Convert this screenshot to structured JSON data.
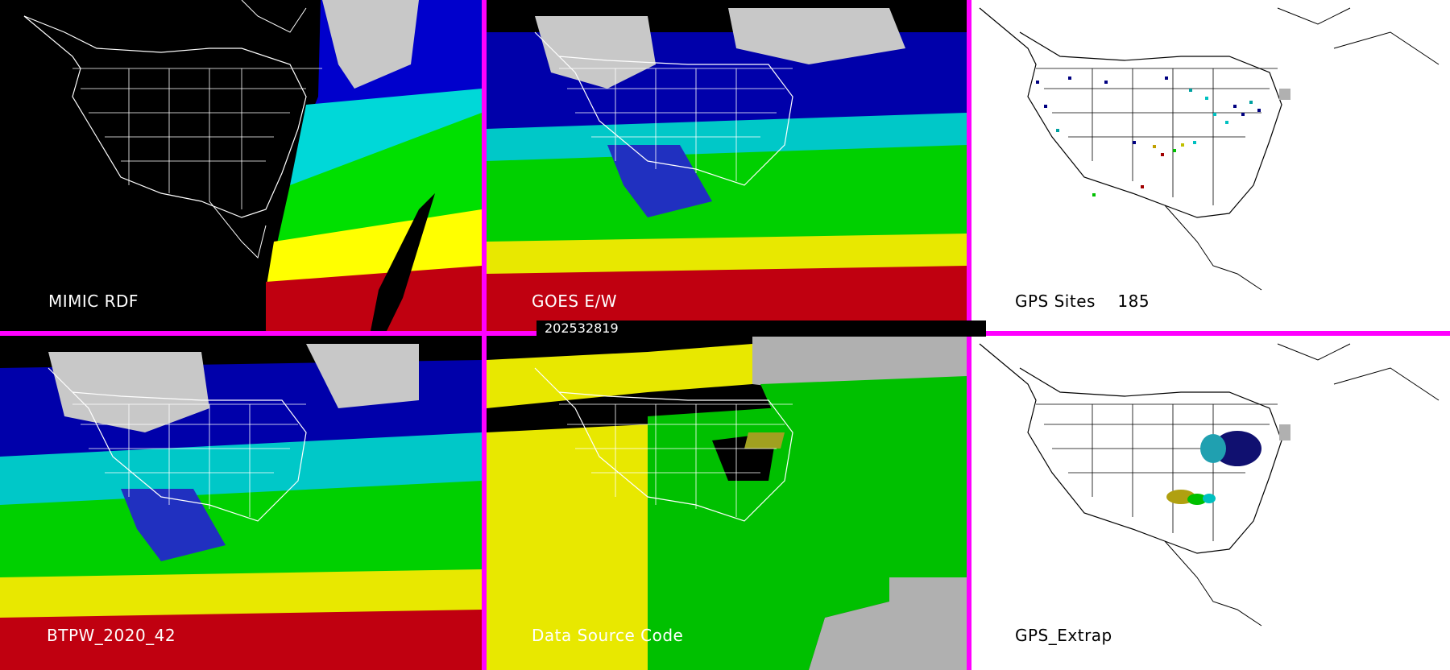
{
  "panels": {
    "mimic_rdf": {
      "label": "MIMIC RDF"
    },
    "goes_ew": {
      "label": "GOES E/W"
    },
    "gps_sites": {
      "label": "GPS Sites",
      "count": "185"
    },
    "btpw": {
      "label": "BTPW_2020_42"
    },
    "data_source_code": {
      "label": "Data Source Code"
    },
    "gps_extrap": {
      "label": "GPS_Extrap"
    }
  },
  "timestamp": "202532819",
  "colors": {
    "divider": "#ff00ff",
    "tpw_scale": [
      "#1a1a8a",
      "#0000ff",
      "#00ffff",
      "#00c000",
      "#00ff00",
      "#e0e000",
      "#ffff00",
      "#c00000"
    ],
    "clouds": "#c8c8c8"
  }
}
